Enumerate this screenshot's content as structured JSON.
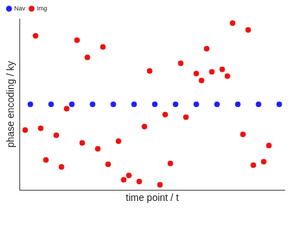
{
  "chart_data": {
    "type": "scatter",
    "x_label": "time point / t",
    "y_label": "phase encoding / ky",
    "xlim": [
      0,
      51
    ],
    "ylim": [
      -1,
      1
    ],
    "tick_labels": false,
    "grid": false,
    "legend": "upper left",
    "series": [
      {
        "name": "Nav",
        "color": "#1f1fff",
        "marker": "circle",
        "x": [
          2,
          6,
          10,
          14,
          18,
          22,
          26,
          30,
          34,
          38,
          42,
          46,
          50
        ],
        "values": [
          0,
          0,
          0,
          0,
          0,
          0,
          0,
          0,
          0,
          0,
          0,
          0,
          0
        ]
      },
      {
        "name": "Img",
        "color": "#ee1111",
        "marker": "circle",
        "x": [
          1,
          3,
          4,
          5,
          7,
          8,
          9,
          11,
          12,
          13,
          15,
          16,
          17,
          19,
          20,
          21,
          23,
          24,
          25,
          27,
          28,
          29,
          31,
          32,
          34,
          35,
          36,
          37,
          39,
          40,
          41,
          43,
          44,
          45,
          47,
          48
        ],
        "values": [
          -0.3,
          0.8,
          -0.28,
          -0.65,
          -0.36,
          -0.73,
          -0.05,
          0.75,
          -0.45,
          0.55,
          -0.52,
          0.67,
          -0.7,
          -0.43,
          -0.88,
          -0.83,
          -0.9,
          -0.26,
          0.39,
          -0.94,
          -0.12,
          -0.69,
          0.48,
          -0.15,
          0.36,
          0.28,
          0.65,
          0.38,
          0.41,
          0.33,
          0.95,
          -0.35,
          0.87,
          -0.71,
          -0.67,
          -0.48
        ]
      }
    ]
  }
}
